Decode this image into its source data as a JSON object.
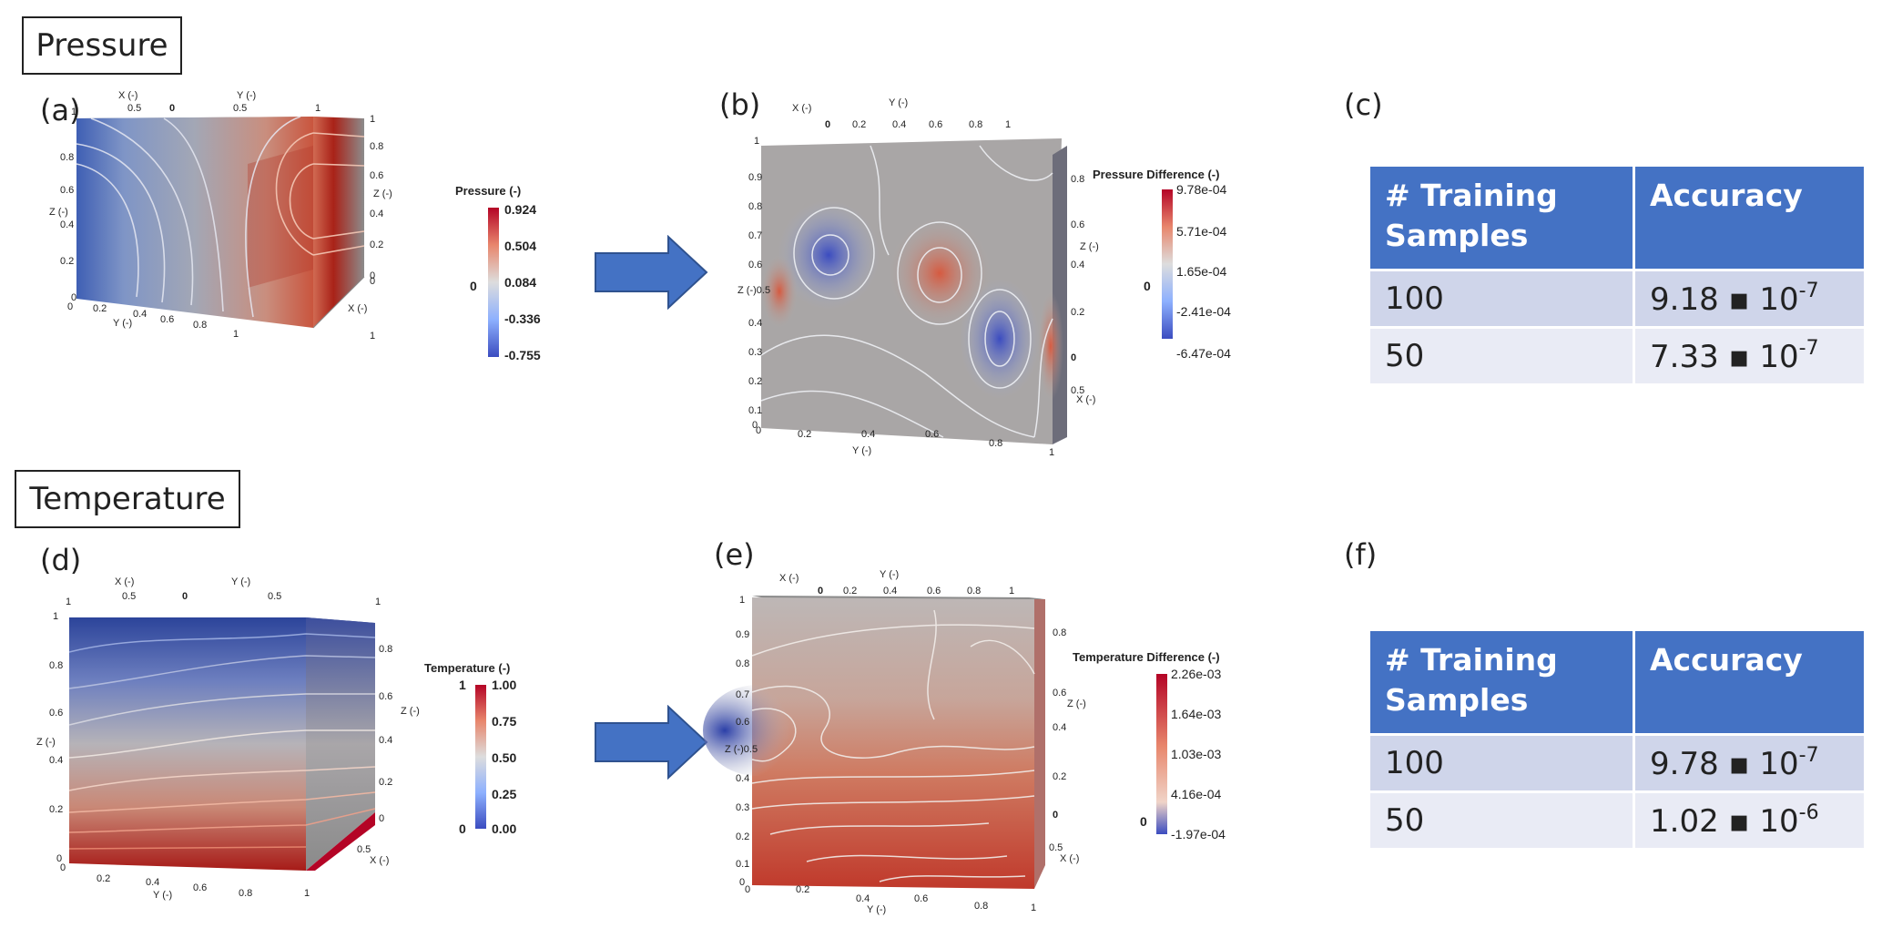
{
  "sections": {
    "pressure": "Pressure",
    "temperature": "Temperature"
  },
  "panel_labels": {
    "a": "(a)",
    "b": "(b)",
    "c": "(c)",
    "d": "(d)",
    "e": "(e)",
    "f": "(f)"
  },
  "axis_labels": {
    "x": "X (-)",
    "y": "Y (-)",
    "z": "Z (-)"
  },
  "colorbars": {
    "pressure": {
      "title": "Pressure (-)",
      "ticks": [
        "0.924",
        "0.504",
        "0.084",
        "-0.336",
        "-0.755"
      ],
      "zero": "0"
    },
    "pressure_diff": {
      "title": "Pressure Difference (-)",
      "ticks": [
        "9.78e-04",
        "5.71e-04",
        "1.65e-04",
        "-2.41e-04",
        "-6.47e-04"
      ],
      "zero": "0"
    },
    "temperature": {
      "title": "Temperature (-)",
      "ticks": [
        "1.00",
        "0.75",
        "0.50",
        "0.25",
        "0.00"
      ],
      "one": "1",
      "zero": "0"
    },
    "temperature_diff": {
      "title": "Temperature Difference (-)",
      "ticks": [
        "2.26e-03",
        "1.64e-03",
        "1.03e-03",
        "4.16e-04",
        "-1.97e-04"
      ],
      "zero": "0"
    }
  },
  "colors": {
    "table_header": "#4472c4",
    "row1": "#cfd5ea",
    "row2": "#e9ebf5",
    "arrow": "#4472c4"
  },
  "tables": {
    "pressure": {
      "headers": [
        "# Training Samples",
        "Accuracy"
      ],
      "rows": [
        {
          "samples": "100",
          "mantissa": "9.18 ▪ 10",
          "exp": "-7"
        },
        {
          "samples": "50",
          "mantissa": "7.33 ▪ 10",
          "exp": "-7"
        }
      ]
    },
    "temperature": {
      "headers": [
        "# Training Samples",
        "Accuracy"
      ],
      "rows": [
        {
          "samples": "100",
          "mantissa": "9.78 ▪ 10",
          "exp": "-7"
        },
        {
          "samples": "50",
          "mantissa": "1.02 ▪ 10",
          "exp": "-6"
        }
      ]
    }
  }
}
